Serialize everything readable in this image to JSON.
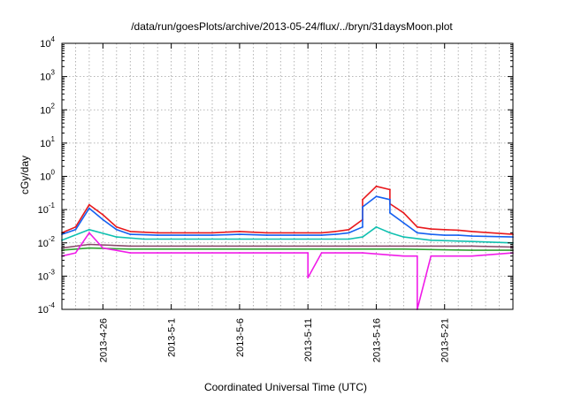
{
  "chart_data": {
    "type": "line",
    "title": "/data/run/goesPlots/archive/2013-05-24/flux/../bryn/31daysMoon.plot",
    "xlabel": "Coordinated Universal Time (UTC)",
    "ylabel": "cGy/day",
    "yscale": "log",
    "ylim": [
      0.0001,
      10000
    ],
    "xlim": [
      "2013-04-23",
      "2013-05-26"
    ],
    "grid": true,
    "legend": "none",
    "y_ticks": [
      {
        "base": "10",
        "exp": "-4"
      },
      {
        "base": "10",
        "exp": "-3"
      },
      {
        "base": "10",
        "exp": "-2"
      },
      {
        "base": "10",
        "exp": "-1"
      },
      {
        "base": "10",
        "exp": "0"
      },
      {
        "base": "10",
        "exp": "1"
      },
      {
        "base": "10",
        "exp": "2"
      },
      {
        "base": "10",
        "exp": "3"
      },
      {
        "base": "10",
        "exp": "4"
      }
    ],
    "x_ticks": [
      {
        "date": "2013-04-26",
        "label": "2013-4-26"
      },
      {
        "date": "2013-05-01",
        "label": "2013-5-1"
      },
      {
        "date": "2013-05-06",
        "label": "2013-5-6"
      },
      {
        "date": "2013-05-11",
        "label": "2013-5-11"
      },
      {
        "date": "2013-05-16",
        "label": "2013-5-16"
      },
      {
        "date": "2013-05-21",
        "label": "2013-5-21"
      }
    ],
    "series": [
      {
        "color": "#e8181c",
        "x": [
          "2013-04-23",
          "2013-04-24",
          "2013-04-25",
          "2013-04-26",
          "2013-04-27",
          "2013-04-28",
          "2013-04-30",
          "2013-05-02",
          "2013-05-04",
          "2013-05-06",
          "2013-05-08",
          "2013-05-10",
          "2013-05-12",
          "2013-05-13",
          "2013-05-14",
          "2013-05-15",
          "2013-05-15",
          "2013-05-16",
          "2013-05-17",
          "2013-05-17",
          "2013-05-18",
          "2013-05-19",
          "2013-05-20",
          "2013-05-21",
          "2013-05-22",
          "2013-05-23",
          "2013-05-26"
        ],
        "values": [
          0.02,
          0.03,
          0.14,
          0.07,
          0.03,
          0.022,
          0.02,
          0.02,
          0.02,
          0.022,
          0.02,
          0.02,
          0.02,
          0.022,
          0.025,
          0.05,
          0.2,
          0.5,
          0.4,
          0.15,
          0.08,
          0.03,
          0.026,
          0.025,
          0.024,
          0.022,
          0.018
        ]
      },
      {
        "color": "#1560f0",
        "x": [
          "2013-04-23",
          "2013-04-24",
          "2013-04-25",
          "2013-04-26",
          "2013-04-27",
          "2013-04-28",
          "2013-04-30",
          "2013-05-02",
          "2013-05-04",
          "2013-05-06",
          "2013-05-08",
          "2013-05-10",
          "2013-05-12",
          "2013-05-13",
          "2013-05-14",
          "2013-05-15",
          "2013-05-15",
          "2013-05-16",
          "2013-05-17",
          "2013-05-17",
          "2013-05-18",
          "2013-05-19",
          "2013-05-20",
          "2013-05-21",
          "2013-05-22",
          "2013-05-23",
          "2013-05-26"
        ],
        "values": [
          0.018,
          0.025,
          0.11,
          0.05,
          0.025,
          0.018,
          0.017,
          0.017,
          0.017,
          0.018,
          0.017,
          0.017,
          0.017,
          0.018,
          0.02,
          0.03,
          0.12,
          0.25,
          0.2,
          0.08,
          0.04,
          0.02,
          0.018,
          0.017,
          0.017,
          0.016,
          0.015
        ]
      },
      {
        "color": "#10c0b0",
        "x": [
          "2013-04-23",
          "2013-04-25",
          "2013-04-27",
          "2013-04-29",
          "2013-05-02",
          "2013-05-06",
          "2013-05-10",
          "2013-05-14",
          "2013-05-15",
          "2013-05-16",
          "2013-05-17",
          "2013-05-18",
          "2013-05-20",
          "2013-05-23",
          "2013-05-26"
        ],
        "values": [
          0.012,
          0.025,
          0.015,
          0.013,
          0.013,
          0.013,
          0.013,
          0.013,
          0.015,
          0.03,
          0.02,
          0.015,
          0.012,
          0.011,
          0.01
        ]
      },
      {
        "color": "#8a4a6a",
        "x": [
          "2013-04-23",
          "2013-04-25",
          "2013-04-28",
          "2013-05-02",
          "2013-05-08",
          "2013-05-14",
          "2013-05-18",
          "2013-05-23",
          "2013-05-26"
        ],
        "values": [
          0.007,
          0.009,
          0.008,
          0.008,
          0.008,
          0.008,
          0.008,
          0.008,
          0.0075
        ]
      },
      {
        "color": "#30a030",
        "x": [
          "2013-04-23",
          "2013-04-25",
          "2013-04-28",
          "2013-05-02",
          "2013-05-08",
          "2013-05-14",
          "2013-05-18",
          "2013-05-23",
          "2013-05-26"
        ],
        "values": [
          0.006,
          0.007,
          0.0065,
          0.0065,
          0.0065,
          0.0065,
          0.0065,
          0.006,
          0.006
        ]
      },
      {
        "color": "#f01ce8",
        "x": [
          "2013-04-23",
          "2013-04-24",
          "2013-04-25",
          "2013-04-26",
          "2013-04-28",
          "2013-04-30",
          "2013-05-03",
          "2013-05-06",
          "2013-05-09",
          "2013-05-11",
          "2013-05-11",
          "2013-05-12",
          "2013-05-15",
          "2013-05-18",
          "2013-05-19",
          "2013-05-19",
          "2013-05-20",
          "2013-05-23",
          "2013-05-26"
        ],
        "values": [
          0.004,
          0.005,
          0.02,
          0.007,
          0.005,
          0.005,
          0.005,
          0.005,
          0.005,
          0.005,
          0.0009,
          0.005,
          0.005,
          0.004,
          0.004,
          0.0001,
          0.004,
          0.004,
          0.005
        ]
      }
    ]
  }
}
